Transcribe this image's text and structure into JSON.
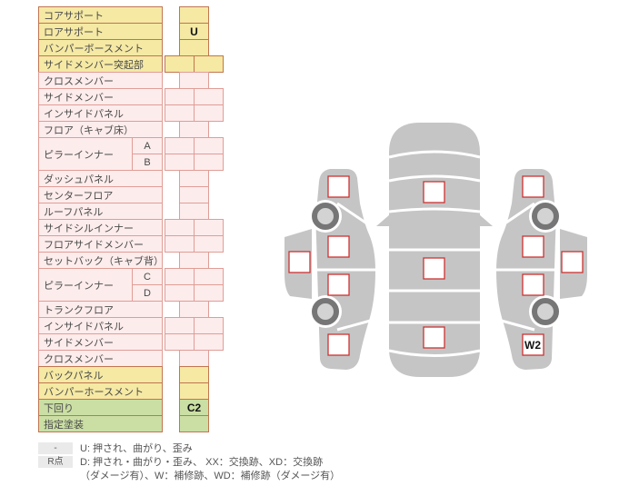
{
  "table": {
    "rows": [
      {
        "label": "コアサポート",
        "theme": "yellow",
        "cells": 1,
        "values": [
          ""
        ]
      },
      {
        "label": "ロアサポート",
        "theme": "yellow",
        "cells": 1,
        "values": [
          "U"
        ]
      },
      {
        "label": "バンパーボースメント",
        "theme": "yellow",
        "cells": 1,
        "values": [
          ""
        ]
      },
      {
        "label": "サイドメンバー突起部",
        "theme": "yellow",
        "cells": 2,
        "values": [
          "",
          ""
        ]
      },
      {
        "label": "クロスメンバー",
        "theme": "pink",
        "cells": 1,
        "values": [
          ""
        ]
      },
      {
        "label": "サイドメンバー",
        "theme": "pink",
        "cells": 2,
        "values": [
          "",
          ""
        ]
      },
      {
        "label": "インサイドパネル",
        "theme": "pink",
        "cells": 2,
        "values": [
          "",
          ""
        ]
      },
      {
        "label": "フロア（キャブ床）",
        "theme": "pink",
        "cells": 1,
        "values": [
          ""
        ]
      },
      {
        "label": "ピラーインナー",
        "sub": [
          "A",
          "B"
        ],
        "theme": "pink",
        "cells": 2,
        "values": [
          [
            "",
            ""
          ],
          [
            "",
            ""
          ]
        ]
      },
      {
        "label": "ダッシュパネル",
        "theme": "pink",
        "cells": 1,
        "values": [
          ""
        ]
      },
      {
        "label": "センターフロア",
        "theme": "pink",
        "cells": 1,
        "values": [
          ""
        ]
      },
      {
        "label": "ルーフパネル",
        "theme": "pink",
        "cells": 1,
        "values": [
          ""
        ]
      },
      {
        "label": "サイドシルインナー",
        "theme": "pink",
        "cells": 2,
        "values": [
          "",
          ""
        ]
      },
      {
        "label": "フロアサイドメンバー",
        "theme": "pink",
        "cells": 2,
        "values": [
          "",
          ""
        ]
      },
      {
        "label": "セットバック（キャブ背）",
        "theme": "pink",
        "cells": 1,
        "values": [
          ""
        ]
      },
      {
        "label": "ピラーインナー",
        "sub": [
          "C",
          "D"
        ],
        "theme": "pink",
        "cells": 2,
        "values": [
          [
            "",
            ""
          ],
          [
            "",
            ""
          ]
        ]
      },
      {
        "label": "トランクフロア",
        "theme": "pink",
        "cells": 1,
        "values": [
          ""
        ]
      },
      {
        "label": "インサイドパネル",
        "theme": "pink",
        "cells": 2,
        "values": [
          "",
          ""
        ]
      },
      {
        "label": "サイドメンバー",
        "theme": "pink",
        "cells": 2,
        "values": [
          "",
          ""
        ]
      },
      {
        "label": "クロスメンバー",
        "theme": "pink",
        "cells": 1,
        "values": [
          ""
        ]
      },
      {
        "label": "バックパネル",
        "theme": "yellow",
        "cells": 1,
        "values": [
          ""
        ]
      },
      {
        "label": "バンパーホースメント",
        "theme": "yellow",
        "cells": 1,
        "values": [
          ""
        ]
      },
      {
        "label": "下回り",
        "theme": "green",
        "cells": 1,
        "values": [
          "C2"
        ]
      },
      {
        "label": "指定塗装",
        "theme": "green",
        "cells": 1,
        "values": [
          ""
        ]
      }
    ]
  },
  "diagram": {
    "w2_label": "W2"
  },
  "legend": {
    "rows": [
      {
        "badge": "-",
        "text": "U: 押され、曲がり、歪み"
      },
      {
        "badge": "R点",
        "text": "D: 押され・曲がり・歪み、 XX：交換跡、XD：交換跡"
      },
      {
        "badge": "",
        "text": "（ダメージ有）、W：補修跡、WD：補修跡（ダメージ有）"
      }
    ]
  },
  "colors": {
    "yellow_bg": "#F5E9A4",
    "pink_bg": "#FDECEC",
    "green_bg": "#CBDFA4",
    "warm_border": "#C1754F",
    "pink_border": "#DF9D96",
    "square_border": "#CC3333",
    "car_gray": "#C5C5C5",
    "wheel_ring": "#767676",
    "wheel_hub": "#D3D3D3"
  }
}
